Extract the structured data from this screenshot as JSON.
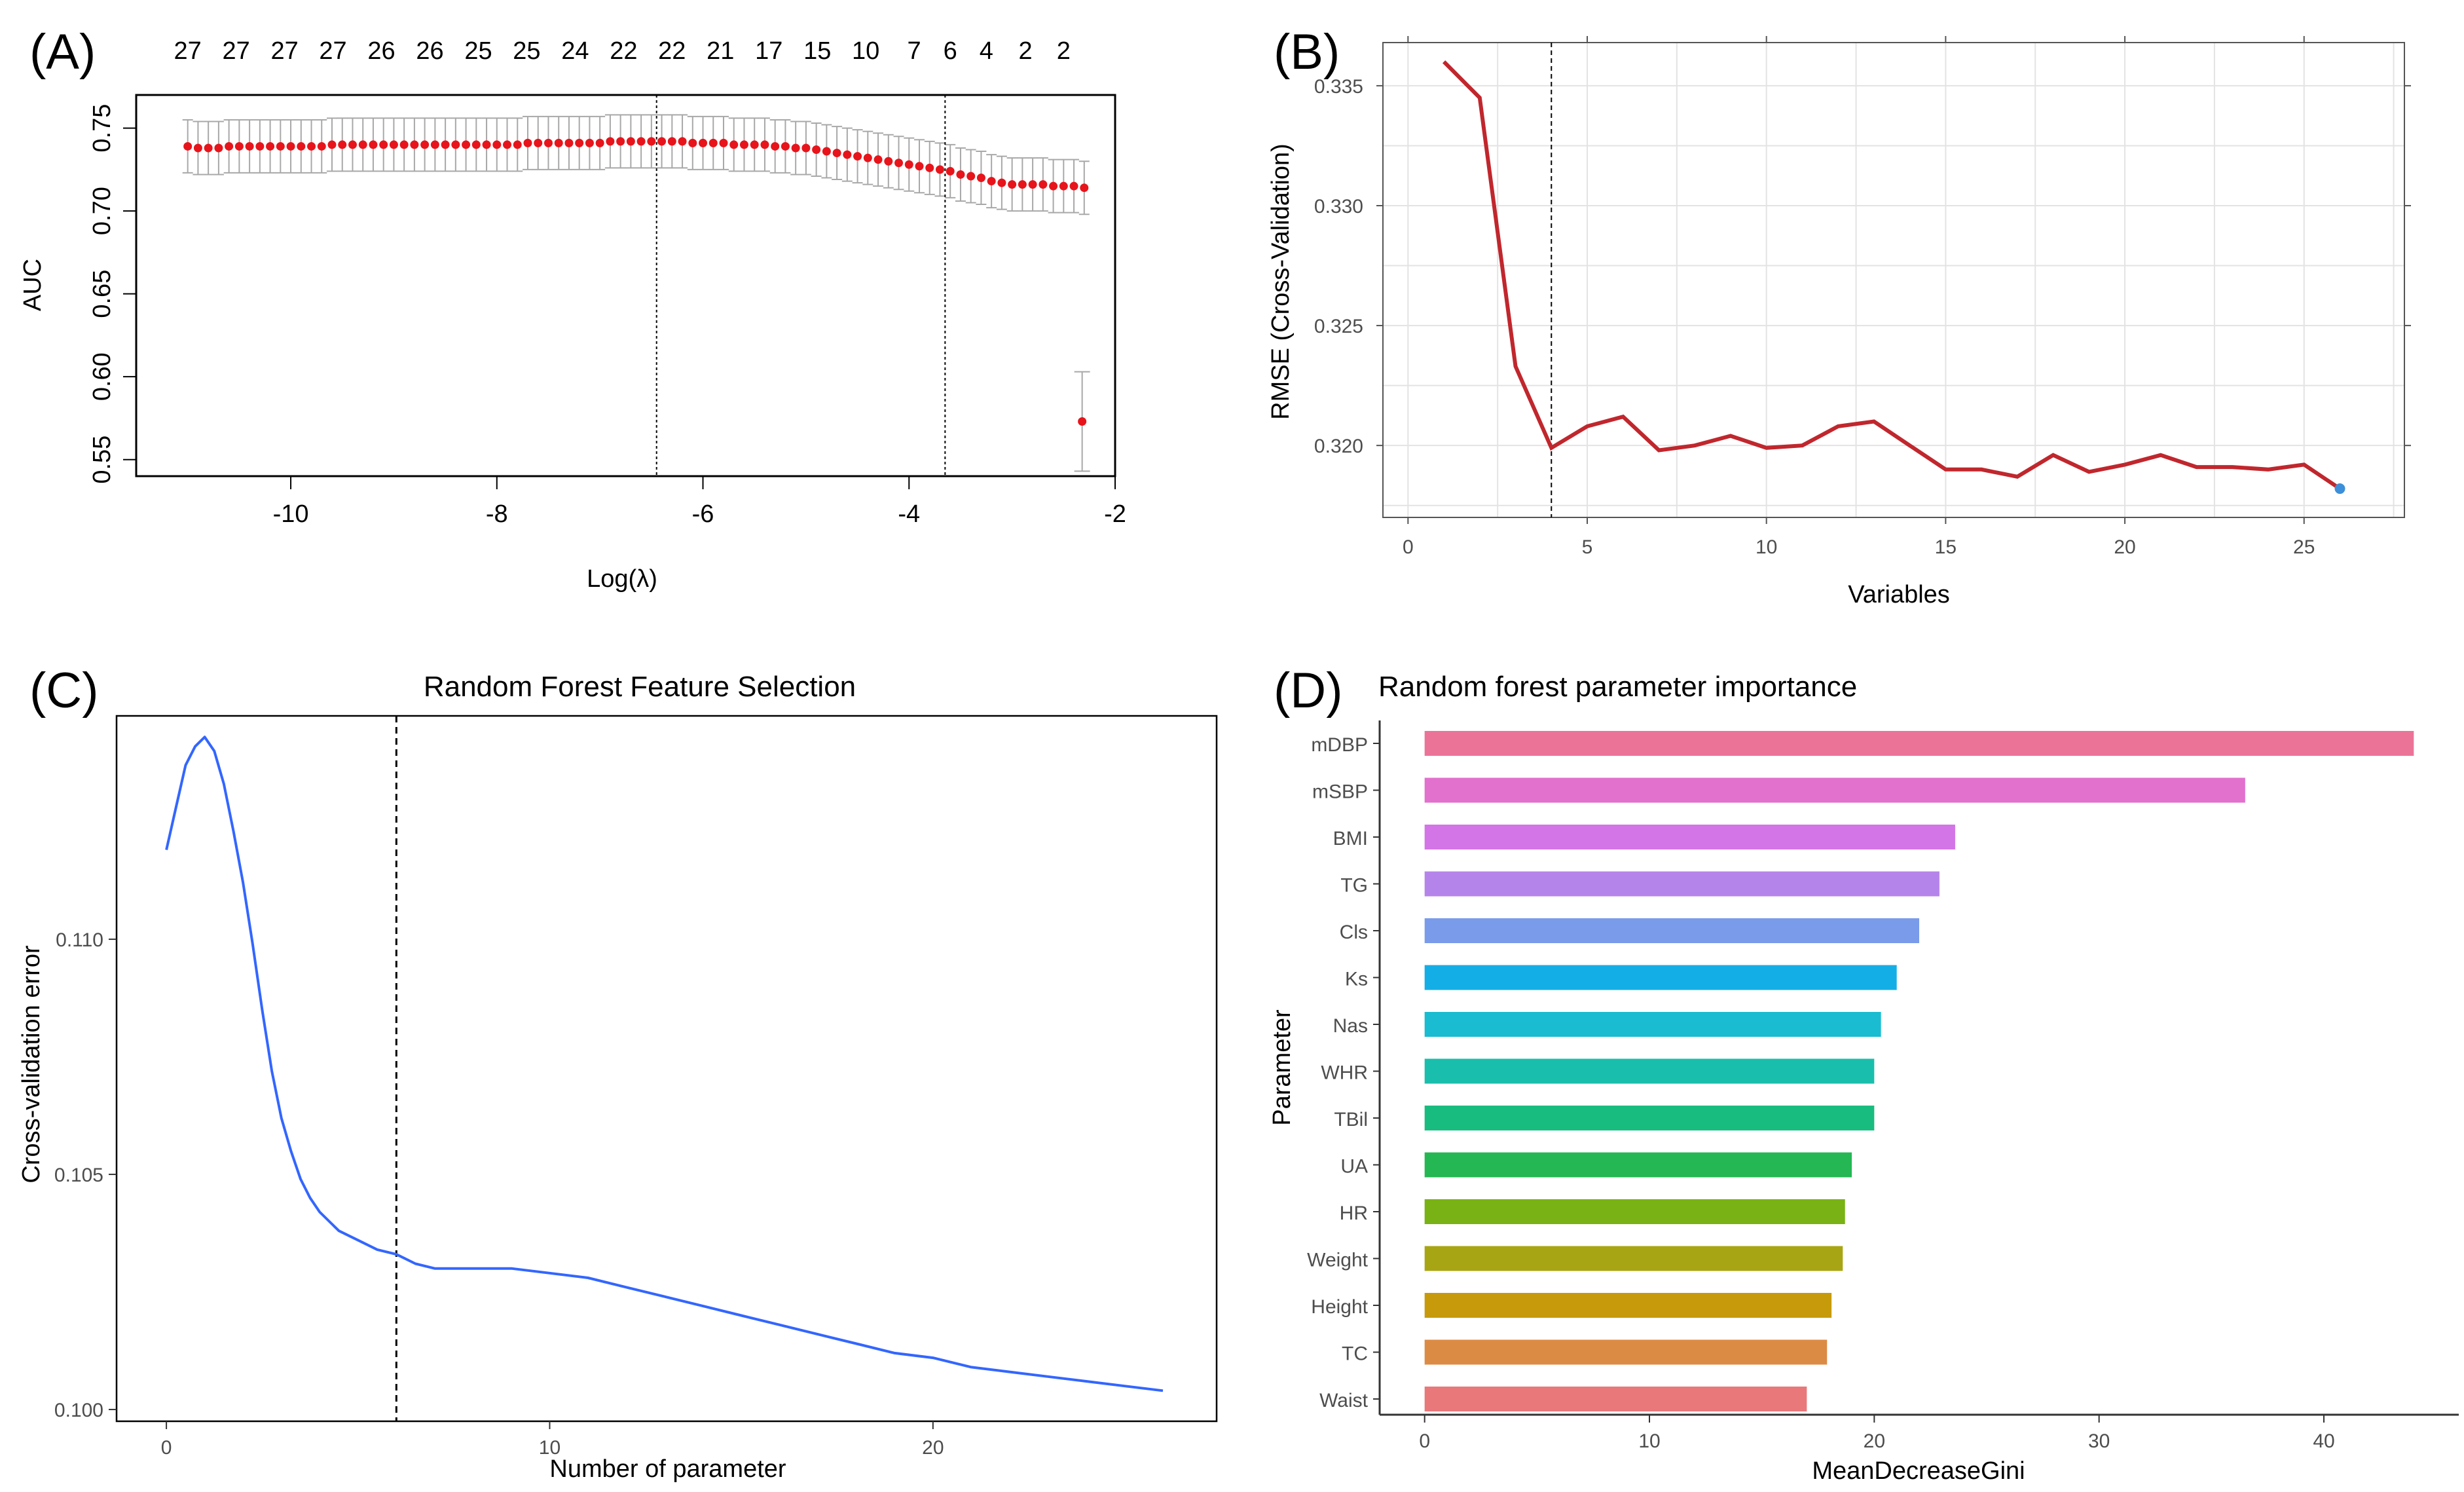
{
  "panels": [
    {
      "label": "(A)"
    },
    {
      "label": "(B)"
    },
    {
      "label": "(C)"
    },
    {
      "label": "(D)"
    }
  ],
  "colors": {
    "lasso_point": "#e8141b",
    "lasso_errbar": "#a8a8a8",
    "rfe_line": "#c0272d",
    "rfe_end": "#3d8fd9",
    "rf_line": "#3366ff"
  },
  "chart_data": [
    {
      "panel": "(A)",
      "type": "scatter",
      "title": "",
      "xlabel": "Log(λ)",
      "ylabel": "AUC",
      "xlim": [
        -11.5,
        -2
      ],
      "ylim": [
        0.54,
        0.77
      ],
      "xticks": [
        -10,
        -8,
        -6,
        -4,
        -2
      ],
      "yticks": [
        0.55,
        0.6,
        0.65,
        0.7,
        0.75
      ],
      "top_axis_counts": [
        "27",
        "27",
        "27",
        "27",
        "26",
        "26",
        "25",
        "25",
        "24",
        "22",
        "22",
        "21",
        "17",
        "15",
        "10",
        "7",
        "6",
        "4",
        "2",
        "2"
      ],
      "top_axis_positions": [
        -11.0,
        -10.53,
        -10.06,
        -9.59,
        -9.12,
        -8.65,
        -8.18,
        -7.71,
        -7.24,
        -6.77,
        -6.3,
        -5.83,
        -5.36,
        -4.89,
        -4.42,
        -3.95,
        -3.6,
        -3.25,
        -2.87,
        -2.5
      ],
      "vlines": [
        -6.45,
        -3.65
      ],
      "points": {
        "x": [
          -11.0,
          -10.9,
          -10.8,
          -10.7,
          -10.6,
          -10.5,
          -10.4,
          -10.3,
          -10.2,
          -10.1,
          -10.0,
          -9.9,
          -9.8,
          -9.7,
          -9.6,
          -9.5,
          -9.4,
          -9.3,
          -9.2,
          -9.1,
          -9.0,
          -8.9,
          -8.8,
          -8.7,
          -8.6,
          -8.5,
          -8.4,
          -8.3,
          -8.2,
          -8.1,
          -8.0,
          -7.9,
          -7.8,
          -7.7,
          -7.6,
          -7.5,
          -7.4,
          -7.3,
          -7.2,
          -7.1,
          -7.0,
          -6.9,
          -6.8,
          -6.7,
          -6.6,
          -6.5,
          -6.4,
          -6.3,
          -6.2,
          -6.1,
          -6.0,
          -5.9,
          -5.8,
          -5.7,
          -5.6,
          -5.5,
          -5.4,
          -5.3,
          -5.2,
          -5.1,
          -5.0,
          -4.9,
          -4.8,
          -4.7,
          -4.6,
          -4.5,
          -4.4,
          -4.3,
          -4.2,
          -4.1,
          -4.0,
          -3.9,
          -3.8,
          -3.7,
          -3.6,
          -3.5,
          -3.4,
          -3.3,
          -3.2,
          -3.1,
          -3.0,
          -2.9,
          -2.8,
          -2.7,
          -2.6,
          -2.5,
          -2.4,
          -2.3
        ],
        "y": [
          0.739,
          0.738,
          0.738,
          0.738,
          0.739,
          0.739,
          0.739,
          0.739,
          0.739,
          0.739,
          0.739,
          0.739,
          0.739,
          0.739,
          0.74,
          0.74,
          0.74,
          0.74,
          0.74,
          0.74,
          0.74,
          0.74,
          0.74,
          0.74,
          0.74,
          0.74,
          0.74,
          0.74,
          0.74,
          0.74,
          0.74,
          0.74,
          0.74,
          0.741,
          0.741,
          0.741,
          0.741,
          0.741,
          0.741,
          0.741,
          0.741,
          0.742,
          0.742,
          0.742,
          0.742,
          0.742,
          0.742,
          0.742,
          0.742,
          0.741,
          0.741,
          0.741,
          0.741,
          0.74,
          0.74,
          0.74,
          0.74,
          0.739,
          0.739,
          0.738,
          0.738,
          0.737,
          0.736,
          0.735,
          0.734,
          0.733,
          0.732,
          0.731,
          0.73,
          0.729,
          0.728,
          0.727,
          0.726,
          0.725,
          0.724,
          0.722,
          0.721,
          0.72,
          0.718,
          0.717,
          0.716,
          0.716,
          0.716,
          0.716,
          0.715,
          0.715,
          0.715,
          0.714
        ],
        "err": 0.016
      },
      "outlier": {
        "x": -2.32,
        "y": 0.573,
        "lo": 0.543,
        "hi": 0.603
      }
    },
    {
      "panel": "(B)",
      "type": "line",
      "title": "",
      "xlabel": "Variables",
      "ylabel": "RMSE (Cross-Validation)",
      "xlim": [
        -0.7,
        27.8
      ],
      "ylim": [
        0.317,
        0.3368
      ],
      "xticks": [
        0,
        5,
        10,
        15,
        20,
        25
      ],
      "yticks": [
        0.32,
        0.325,
        0.33,
        0.335
      ],
      "grid": true,
      "vline": 4,
      "x": [
        1,
        2,
        3,
        4,
        5,
        6,
        7,
        8,
        9,
        10,
        11,
        12,
        13,
        14,
        15,
        16,
        17,
        18,
        19,
        20,
        21,
        22,
        23,
        24,
        25,
        26
      ],
      "y": [
        0.336,
        0.3345,
        0.3233,
        0.3199,
        0.3208,
        0.3212,
        0.3198,
        0.32,
        0.3204,
        0.3199,
        0.32,
        0.3208,
        0.321,
        0.32,
        0.319,
        0.319,
        0.3187,
        0.3196,
        0.3189,
        0.3192,
        0.3196,
        0.3191,
        0.3191,
        0.319,
        0.3192,
        0.3182
      ],
      "endpoint": {
        "x": 26,
        "y": 0.3182
      }
    },
    {
      "panel": "(C)",
      "type": "line",
      "title": "Random Forest Feature Selection",
      "xlabel": "Number of parameter",
      "ylabel": "Cross-validation error",
      "xlim": [
        -1.3,
        27.4
      ],
      "ylim": [
        0.09975,
        0.11475
      ],
      "xticks": [
        0,
        10,
        20
      ],
      "yticks": [
        0.1,
        0.105,
        0.11
      ],
      "vline": 6,
      "x": [
        0,
        0.25,
        0.5,
        0.75,
        1,
        1.25,
        1.5,
        1.75,
        2,
        2.25,
        2.5,
        2.75,
        3,
        3.25,
        3.5,
        3.75,
        4,
        4.5,
        5,
        5.5,
        6,
        6.5,
        7,
        8,
        9,
        10,
        11,
        12,
        13,
        14,
        15,
        16,
        17,
        18,
        19,
        20,
        21,
        22,
        23,
        24,
        25,
        26
      ],
      "y": [
        0.1119,
        0.1128,
        0.1137,
        0.1141,
        0.1143,
        0.114,
        0.1133,
        0.1123,
        0.1112,
        0.1099,
        0.1085,
        0.1072,
        0.1062,
        0.1055,
        0.1049,
        0.1045,
        0.1042,
        0.1038,
        0.1036,
        0.1034,
        0.1033,
        0.1031,
        0.103,
        0.103,
        0.103,
        0.1029,
        0.1028,
        0.1026,
        0.1024,
        0.1022,
        0.102,
        0.1018,
        0.1016,
        0.1014,
        0.1012,
        0.1011,
        0.1009,
        0.1008,
        0.1007,
        0.1006,
        0.1005,
        0.1004
      ]
    },
    {
      "panel": "(D)",
      "type": "bar",
      "title": "Random forest parameter importance",
      "xlabel": "MeanDecreaseGini",
      "ylabel": "Parameter",
      "xlim": [
        -2,
        46
      ],
      "xticks": [
        0,
        10,
        20,
        30,
        40
      ],
      "categories": [
        "mDBP",
        "mSBP",
        "BMI",
        "TG",
        "Cls",
        "Ks",
        "Nas",
        "WHR",
        "TBil",
        "UA",
        "HR",
        "Weight",
        "Height",
        "TC",
        "Waist"
      ],
      "values": [
        44.0,
        36.5,
        23.6,
        22.9,
        22.0,
        21.0,
        20.3,
        20.0,
        20.0,
        19.0,
        18.7,
        18.6,
        18.1,
        17.9,
        17.0
      ],
      "colors": [
        "#ec7398",
        "#e270cd",
        "#d375e6",
        "#b584ea",
        "#7a9bea",
        "#14aee6",
        "#19bcd0",
        "#19bfac",
        "#19bc7f",
        "#24b753",
        "#79b214",
        "#a8a514",
        "#c79a0b",
        "#dc8b45",
        "#e8787a"
      ]
    }
  ]
}
